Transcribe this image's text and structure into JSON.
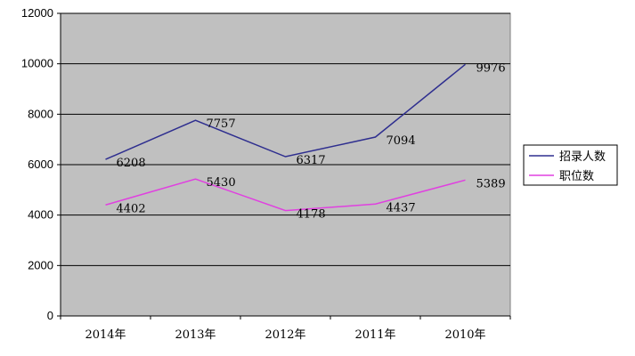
{
  "chart_data": {
    "type": "line",
    "categories": [
      "2014年",
      "2013年",
      "2012年",
      "2011年",
      "2010年"
    ],
    "series": [
      {
        "name": "招录人数",
        "values": [
          6208,
          7757,
          6317,
          7094,
          9976
        ],
        "color": "#2e2e8f"
      },
      {
        "name": "职位数",
        "values": [
          4402,
          5430,
          4178,
          4437,
          5389
        ],
        "color": "#e040e0"
      }
    ],
    "ylim": [
      0,
      12000
    ],
    "yticks": [
      "0",
      "2000",
      "4000",
      "6000",
      "8000",
      "10000",
      "12000"
    ],
    "grid": true,
    "legend": "right",
    "plot_background": "#c0c0c0"
  }
}
